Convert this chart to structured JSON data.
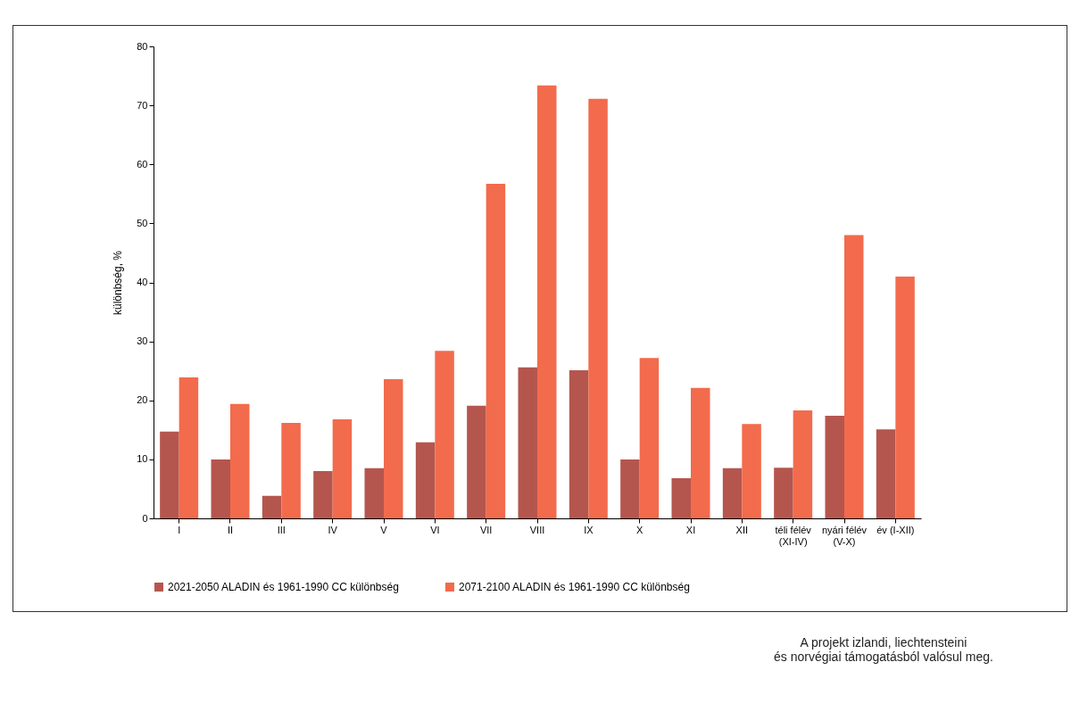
{
  "chart_data": {
    "type": "bar",
    "ylabel": "különbség, %",
    "categories": [
      "I",
      "II",
      "III",
      "IV",
      "V",
      "VI",
      "VII",
      "VIII",
      "IX",
      "X",
      "XI",
      "XII",
      "téli félév\n(XI-IV)",
      "nyári félév\n(V-X)",
      "év (I-XII)"
    ],
    "series": [
      {
        "name": "2021-2050 ALADIN és 1961-1990 CC különbség",
        "color": "#b5564e",
        "values": [
          14.7,
          10.0,
          3.8,
          8.0,
          8.5,
          12.9,
          19.1,
          25.6,
          25.1,
          10.0,
          6.8,
          8.5,
          8.6,
          17.4,
          15.1
        ]
      },
      {
        "name": "2071-2100 ALADIN és 1961-1990 CC különbség",
        "color": "#f26b4c",
        "values": [
          23.9,
          19.4,
          16.2,
          16.8,
          23.6,
          28.4,
          56.7,
          73.4,
          71.1,
          27.2,
          22.1,
          16.0,
          18.3,
          48.0,
          41.0
        ]
      }
    ],
    "ylim": [
      0,
      80
    ],
    "yticks": [
      0,
      10,
      20,
      30,
      40,
      50,
      60,
      70,
      80
    ],
    "grid": false,
    "legend": "bottom",
    "annotations": [
      "A projekt izlandi, liechtensteini\nés norvégiai támogatásból valósul meg."
    ]
  }
}
